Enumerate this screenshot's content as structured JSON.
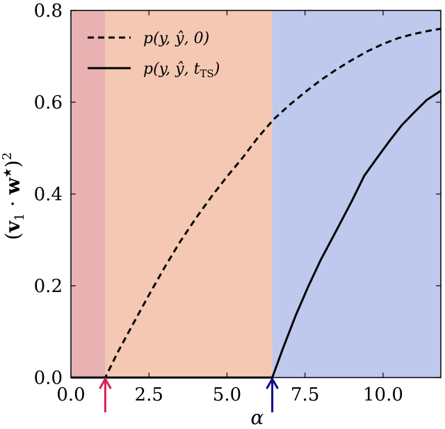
{
  "chart_data": {
    "type": "line",
    "xlabel": "α",
    "ylabel": "(v₁ · w★)²",
    "xlim": [
      0,
      11.85
    ],
    "ylim": [
      0,
      0.8
    ],
    "xticks": [
      {
        "value": 0,
        "label": "0.0"
      },
      {
        "value": 2.5,
        "label": "2.5"
      },
      {
        "value": 5,
        "label": "5.0"
      },
      {
        "value": 7.5,
        "label": "7.5"
      },
      {
        "value": 10,
        "label": "10.0"
      }
    ],
    "yticks": [
      {
        "value": 0,
        "label": "0.0"
      },
      {
        "value": 0.2,
        "label": "0.2"
      },
      {
        "value": 0.4,
        "label": "0.4"
      },
      {
        "value": 0.6,
        "label": "0.6"
      },
      {
        "value": 0.8,
        "label": "0.8"
      }
    ],
    "regions": [
      {
        "x0": 0,
        "x1": 1.1,
        "color": "#e8b2b2"
      },
      {
        "x0": 1.1,
        "x1": 6.45,
        "color": "#f4c8b2"
      },
      {
        "x0": 6.45,
        "x1": 11.85,
        "color": "#bfc8ed"
      }
    ],
    "arrows": [
      {
        "x": 1.1,
        "color": "#d6204e"
      },
      {
        "x": 6.45,
        "color": "#0c0a8a"
      }
    ],
    "series": [
      {
        "name": "p(y, ŷ, 0)",
        "style": "dashed",
        "x": [
          0,
          1.1,
          1.5,
          2.0,
          2.5,
          3.0,
          3.5,
          4.0,
          4.5,
          5.0,
          5.5,
          6.0,
          6.5,
          7.0,
          7.5,
          8.0,
          8.5,
          9.0,
          9.5,
          10.0,
          10.5,
          11.0,
          11.5,
          11.85
        ],
        "y": [
          0,
          0,
          0.055,
          0.118,
          0.18,
          0.24,
          0.296,
          0.347,
          0.394,
          0.438,
          0.479,
          0.524,
          0.563,
          0.594,
          0.622,
          0.648,
          0.671,
          0.692,
          0.711,
          0.727,
          0.74,
          0.749,
          0.756,
          0.76
        ]
      },
      {
        "name": "p(y, ŷ, t_TS)",
        "style": "solid",
        "x": [
          0,
          6.45,
          6.8,
          7.2,
          7.6,
          8.0,
          8.5,
          9.0,
          9.4,
          9.8,
          10.2,
          10.6,
          11.0,
          11.4,
          11.85
        ],
        "y": [
          0,
          0,
          0.065,
          0.135,
          0.198,
          0.256,
          0.32,
          0.385,
          0.44,
          0.478,
          0.515,
          0.55,
          0.578,
          0.605,
          0.625
        ]
      }
    ],
    "legend": {
      "placement": "top-left"
    }
  },
  "legend_labels": {
    "s0_main": "p(y, ŷ, 0)",
    "s1_main": "p(y, ŷ, t",
    "s1_sub": "TS",
    "s1_end": ")"
  },
  "ylabel_parts": {
    "open": "(",
    "v": "v",
    "v_sub": "1",
    "dot": " · ",
    "w": "w",
    "w_sup": "★",
    "close": ")",
    "power": "2"
  }
}
